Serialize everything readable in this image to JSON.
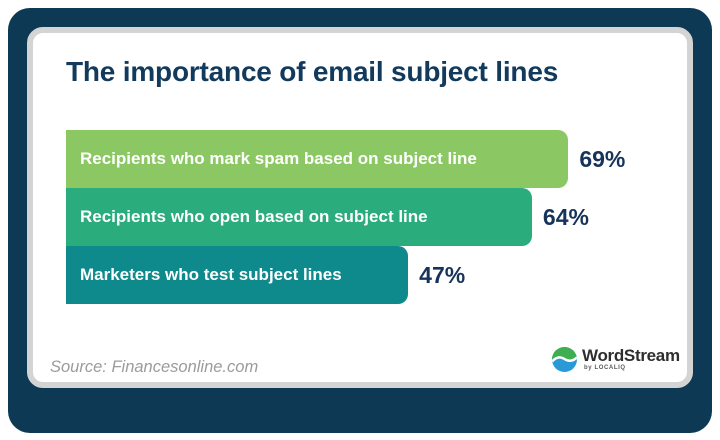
{
  "title": "The importance of email subject lines",
  "source_note": "Source: Financesonline.com",
  "brand": {
    "name": "WordStream",
    "byline": "by LOCALIQ",
    "logo_icon": "wave-circle-icon",
    "logo_colors": {
      "top": "#3fae4e",
      "bottom": "#2a9ad6",
      "wave": "#ffffff"
    }
  },
  "colors": {
    "frame_navy": "#0d3954",
    "card_border_gray": "#d4d4d4",
    "title_navy": "#113a5c",
    "value_navy": "#16335b",
    "bar_label_white": "#ffffff",
    "source_gray": "#9b9b9b"
  },
  "chart_data": {
    "type": "bar",
    "orientation": "horizontal",
    "title": "The importance of email subject lines",
    "categories": [
      "Recipients who mark spam based on subject line",
      "Recipients who open based on subject line",
      "Marketers who test subject lines"
    ],
    "values": [
      69,
      64,
      47
    ],
    "value_labels": [
      "69%",
      "64%",
      "47%"
    ],
    "bar_colors": [
      "#8bc863",
      "#2bac7c",
      "#0e898c"
    ],
    "xlim": [
      0,
      100
    ],
    "grid": false,
    "legend": false,
    "value_label_position": "outside-end"
  }
}
